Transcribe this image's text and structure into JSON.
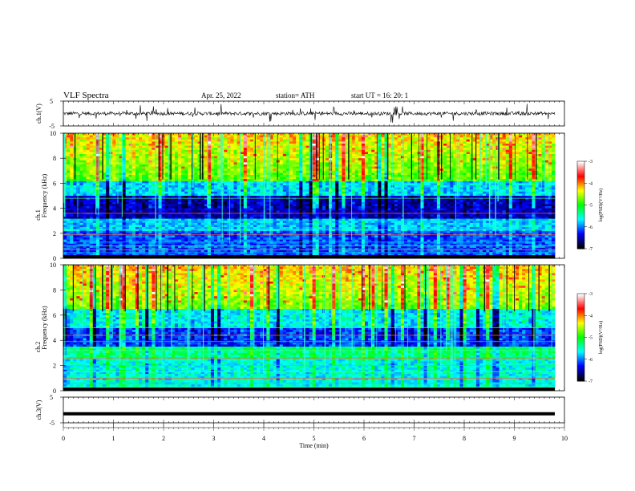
{
  "header": {
    "title": "VLF  Spectra",
    "date": "Apr. 25, 2022",
    "station": "station= ATH",
    "start_ut": "start  UT  =    16: 20: 1"
  },
  "colors": {
    "trace": "#000000",
    "colormap": [
      "#000000",
      "#0000ff",
      "#00ffff",
      "#00ff00",
      "#ffff00",
      "#ff0000",
      "#ffffff"
    ]
  },
  "chart_data": [
    {
      "type": "line",
      "ylabel": "ch.1(V)",
      "ylim": [
        -5,
        5
      ],
      "yticks": [
        "5",
        "-5"
      ],
      "xlim": [
        0,
        10
      ],
      "series": [
        {
          "description": "noisy waveform near 0 V with sharp spikes",
          "baseline": 0
        }
      ]
    },
    {
      "type": "heatmap",
      "ylabel_top": "ch.1",
      "ylabel": "Frequency  (kHz)",
      "ylim": [
        0,
        10
      ],
      "yticks": [
        "0",
        "2",
        "4",
        "6",
        "8",
        "10"
      ],
      "xlim": [
        0,
        10
      ],
      "colorbar": {
        "label": "log(PSD)(V²/Hz)",
        "range": [
          -7,
          -3
        ],
        "ticks": [
          "-3",
          "-4",
          "-5",
          "-6",
          "-7"
        ]
      }
    },
    {
      "type": "heatmap",
      "ylabel_top": "ch.2",
      "ylabel": "Frequency  (kHz)",
      "ylim": [
        0,
        10
      ],
      "yticks": [
        "0",
        "2",
        "4",
        "6",
        "8",
        "10"
      ],
      "xlim": [
        0,
        10
      ],
      "colorbar": {
        "label": "log(PSD)(V²/Hz)",
        "range": [
          -7,
          -3
        ],
        "ticks": [
          "-3",
          "-4",
          "-5",
          "-6",
          "-7"
        ]
      }
    },
    {
      "type": "line",
      "ylabel": "ch.3(V)",
      "ylim": [
        -5,
        5
      ],
      "yticks": [
        "5",
        "-5"
      ],
      "xlim": [
        0,
        10
      ],
      "series": [
        {
          "description": "flat thick line",
          "values": [
            -1.5,
            -1.5
          ]
        }
      ]
    }
  ],
  "xaxis": {
    "label": "Time  (min)",
    "ticks": [
      "0",
      "1",
      "2",
      "3",
      "4",
      "5",
      "6",
      "7",
      "8",
      "9",
      "10"
    ]
  }
}
